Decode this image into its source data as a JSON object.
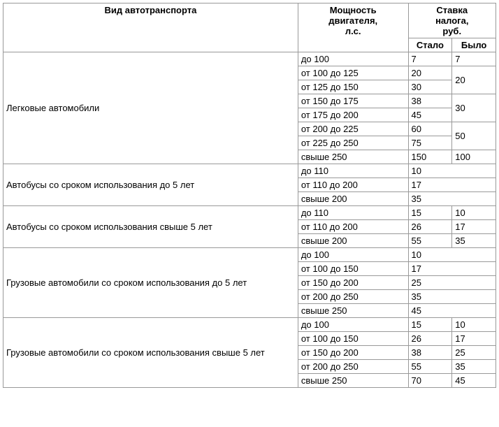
{
  "headers": {
    "vehicle_type": "Вид автотранспорта",
    "engine_power": "Мощность\nдвигателя,\nл.с.",
    "tax_rate": "Ставка\nналога,\nруб.",
    "now": "Стало",
    "was": "Было"
  },
  "groups": [
    {
      "name": "Легковые автомобили",
      "rows": [
        {
          "power": "до 100",
          "now": "7",
          "was": "7",
          "was_span": 1
        },
        {
          "power": "от 100 до 125",
          "now": "20",
          "was": "20",
          "was_span": 2
        },
        {
          "power": "от 125 до 150",
          "now": "30"
        },
        {
          "power": "от 150 до 175",
          "now": "38",
          "was": "30",
          "was_span": 2
        },
        {
          "power": "от 175 до 200",
          "now": "45"
        },
        {
          "power": "от 200 до 225",
          "now": "60",
          "was": "50",
          "was_span": 2
        },
        {
          "power": "от 225 до 250",
          "now": "75"
        },
        {
          "power": "свыше 250",
          "now": "150",
          "was": "100",
          "was_span": 1
        }
      ]
    },
    {
      "name": "Автобусы со сроком использования до 5 лет",
      "rows": [
        {
          "power": "до 110",
          "now": "10",
          "merged": true
        },
        {
          "power": "от 110 до 200",
          "now": "17",
          "merged": true
        },
        {
          "power": "свыше 200",
          "now": "35",
          "merged": true
        }
      ]
    },
    {
      "name": "Автобусы со сроком использования свыше 5 лет",
      "rows": [
        {
          "power": "до 110",
          "now": "15",
          "was": "10",
          "was_span": 1
        },
        {
          "power": "от 110 до 200",
          "now": "26",
          "was": "17",
          "was_span": 1
        },
        {
          "power": "свыше 200",
          "now": "55",
          "was": "35",
          "was_span": 1
        }
      ]
    },
    {
      "name": "Грузовые автомобили со сроком использования до 5 лет",
      "rows": [
        {
          "power": "до 100",
          "now": "10",
          "merged": true
        },
        {
          "power": "от 100 до 150",
          "now": "17",
          "merged": true
        },
        {
          "power": "от 150 до 200",
          "now": "25",
          "merged": true
        },
        {
          "power": "от 200 до 250",
          "now": "35",
          "merged": true
        },
        {
          "power": "свыше 250",
          "now": "45",
          "merged": true
        }
      ]
    },
    {
      "name": "Грузовые автомобили со сроком использования свыше 5 лет",
      "rows": [
        {
          "power": "до 100",
          "now": "15",
          "was": "10",
          "was_span": 1
        },
        {
          "power": "от 100 до 150",
          "now": "26",
          "was": "17",
          "was_span": 1
        },
        {
          "power": "от 150 до 200",
          "now": "38",
          "was": "25",
          "was_span": 1
        },
        {
          "power": "от 200 до 250",
          "now": "55",
          "was": "35",
          "was_span": 1
        },
        {
          "power": "свыше 250",
          "now": "70",
          "was": "45",
          "was_span": 1
        }
      ]
    }
  ]
}
